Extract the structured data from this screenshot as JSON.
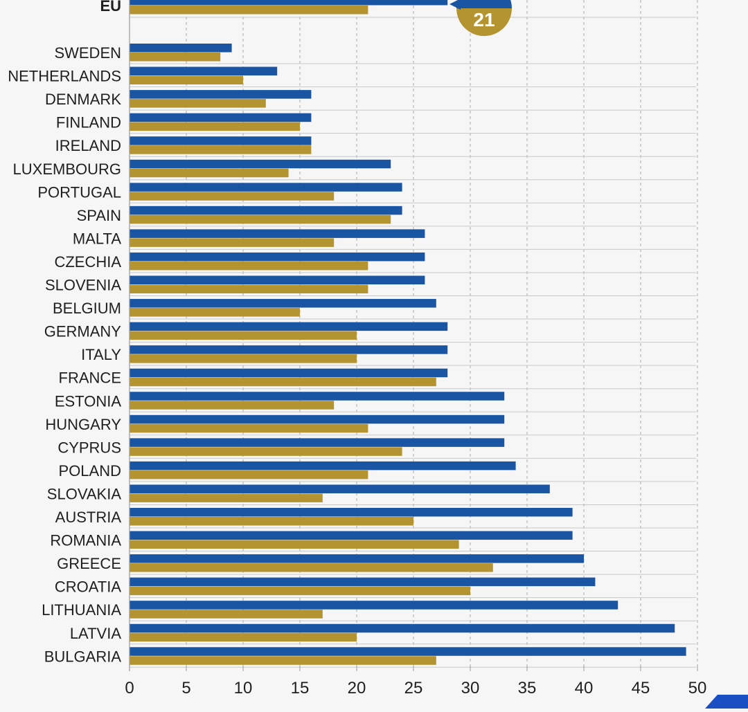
{
  "colors": {
    "series_blue": "#1a55a4",
    "series_gold": "#b39431",
    "grid": "#a9a9a9",
    "row_line": "#c8c8c8",
    "background": "#f6f6f6"
  },
  "chart_data": {
    "type": "bar",
    "orientation": "horizontal",
    "xlim": [
      0,
      50
    ],
    "x_ticks": [
      0,
      5,
      10,
      15,
      20,
      25,
      30,
      35,
      40,
      45,
      50
    ],
    "grid": "vertical-dashed",
    "categories": [
      "EU",
      "SWEDEN",
      "NETHERLANDS",
      "DENMARK",
      "FINLAND",
      "IRELAND",
      "LUXEMBOURG",
      "PORTUGAL",
      "SPAIN",
      "MALTA",
      "CZECHIA",
      "SLOVENIA",
      "BELGIUM",
      "GERMANY",
      "ITALY",
      "FRANCE",
      "ESTONIA",
      "HUNGARY",
      "CYPRUS",
      "POLAND",
      "SLOVAKIA",
      "AUSTRIA",
      "ROMANIA",
      "GREECE",
      "CROATIA",
      "LITHUANIA",
      "LATVIA",
      "BULGARIA"
    ],
    "series": [
      {
        "color": "#1a55a4",
        "values": [
          28,
          9,
          13,
          16,
          16,
          16,
          23,
          24,
          24,
          26,
          26,
          26,
          27,
          28,
          28,
          28,
          33,
          33,
          33,
          34,
          37,
          39,
          39,
          40,
          41,
          43,
          48,
          49
        ]
      },
      {
        "color": "#b39431",
        "values": [
          21,
          8,
          10,
          12,
          15,
          16,
          14,
          18,
          23,
          18,
          21,
          21,
          15,
          20,
          20,
          27,
          18,
          21,
          24,
          21,
          17,
          25,
          29,
          32,
          30,
          17,
          20,
          27
        ]
      }
    ],
    "annotations": [
      {
        "category": "EU",
        "text": "21"
      }
    ]
  }
}
